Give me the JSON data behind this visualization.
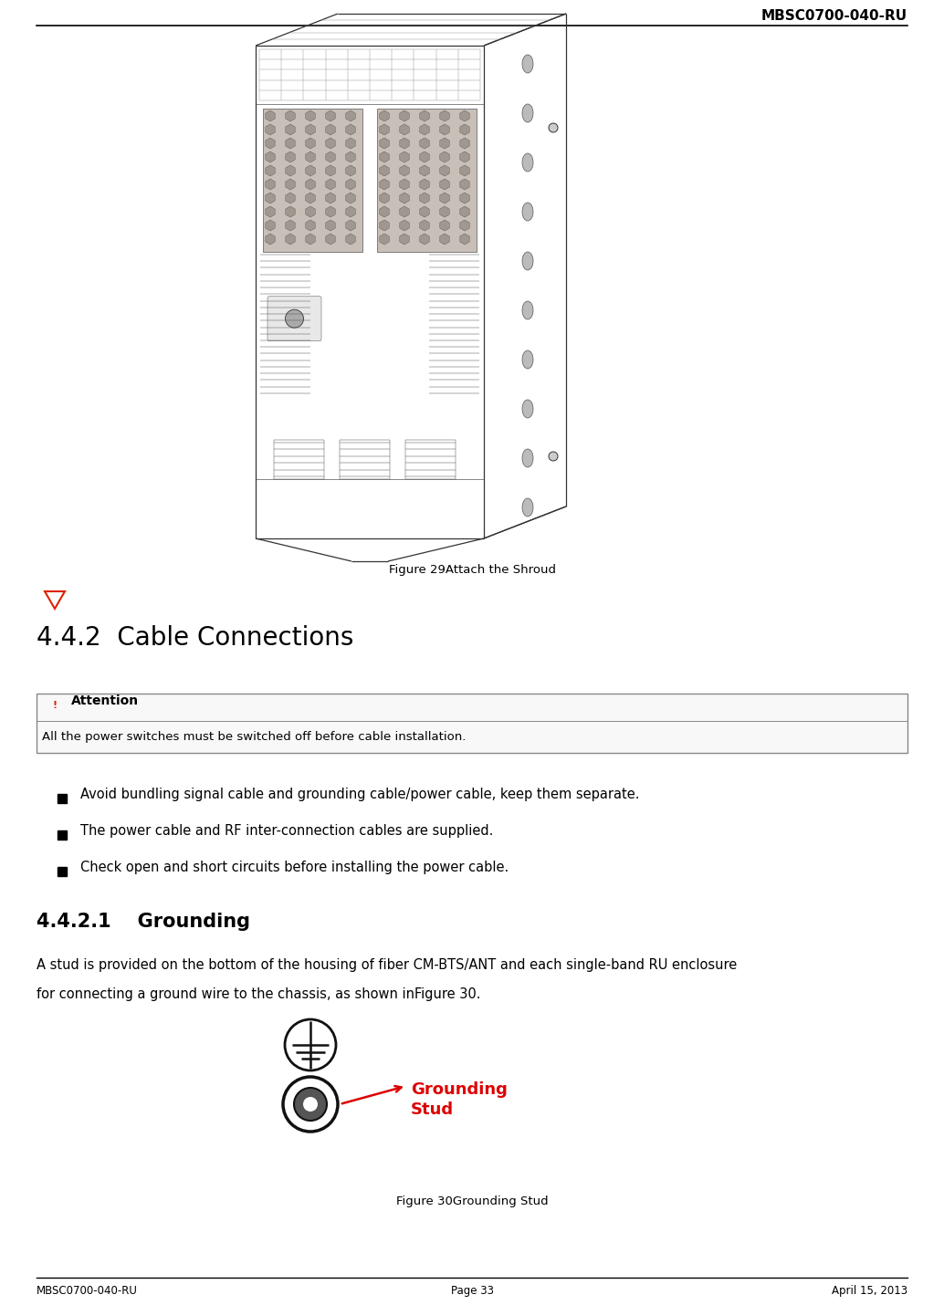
{
  "header_right": "MBSC0700-040-RU",
  "footer_left": "MBSC0700-040-RU",
  "footer_right": "April 15, 2013",
  "footer_center": "Page 33",
  "figure29_caption": "Figure 29Attach the Shroud",
  "figure30_caption": "Figure 30Grounding Stud",
  "section_442": "4.4.2  Cable Connections",
  "section_4421": "4.4.2.1    Grounding",
  "attention_body": "All the power switches must be switched off before cable installation.",
  "bullet1": "Avoid bundling signal cable and grounding cable/power cable, keep them separate.",
  "bullet2": "The power cable and RF inter-connection cables are supplied.",
  "bullet3": "Check open and short circuits before installing the power cable.",
  "grounding_para1": "A stud is provided on the bottom of the housing of fiber CM-BTS/ANT and each single-band RU enclosure",
  "grounding_para2": "for connecting a ground wire to the chassis, as shown inFigure 30.",
  "bg_color": "#ffffff",
  "text_color": "#000000",
  "attention_border": "#888888",
  "grounding_label_color": "#dd0000",
  "header_font_size": 11,
  "footer_font_size": 8.5,
  "section_font_size": 20,
  "subsection_font_size": 15,
  "body_font_size": 10.5,
  "caption_font_size": 9.5
}
